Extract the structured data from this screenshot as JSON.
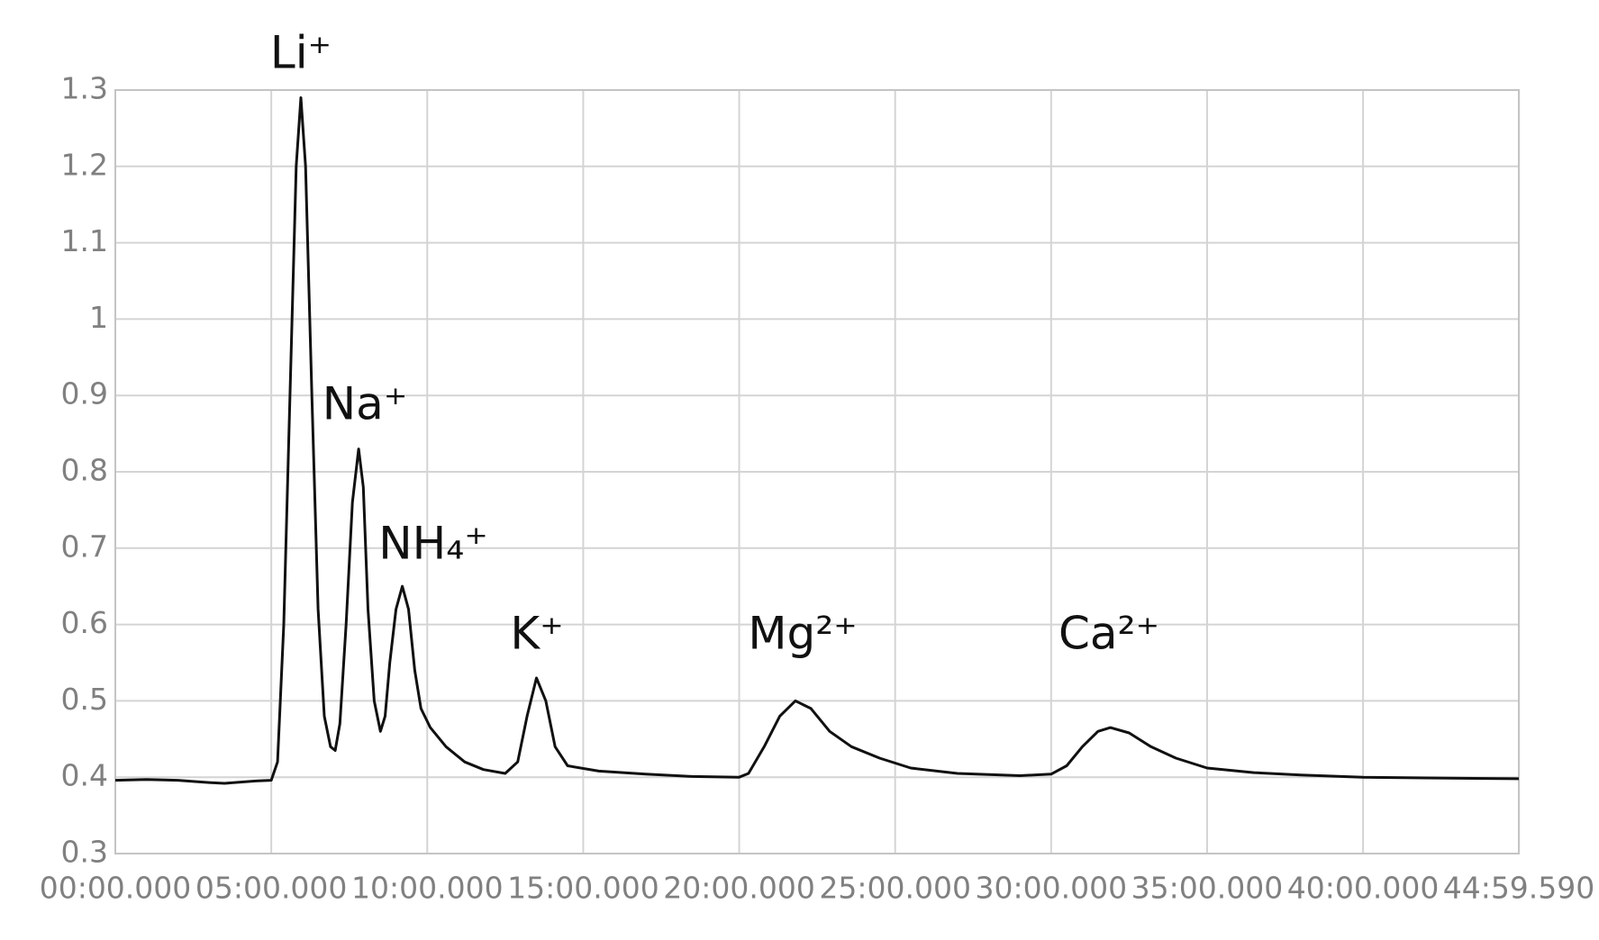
{
  "chart_data": {
    "type": "line",
    "x": [
      0,
      1,
      2,
      3,
      3.5,
      4.5,
      5.0,
      5.2,
      5.4,
      5.6,
      5.8,
      5.95,
      6.1,
      6.3,
      6.5,
      6.7,
      6.9,
      7.05,
      7.2,
      7.4,
      7.6,
      7.8,
      7.95,
      8.1,
      8.3,
      8.5,
      8.65,
      8.8,
      9.0,
      9.2,
      9.4,
      9.6,
      9.8,
      10.1,
      10.6,
      11.2,
      11.8,
      12.5,
      12.9,
      13.2,
      13.5,
      13.8,
      14.1,
      14.5,
      15.5,
      17,
      18.5,
      20,
      20.3,
      20.8,
      21.3,
      21.8,
      22.3,
      22.9,
      23.6,
      24.5,
      25.5,
      27,
      29,
      30,
      30.5,
      31.0,
      31.5,
      31.9,
      32.5,
      33.2,
      34,
      35,
      36.5,
      38,
      40,
      42,
      44.99317
    ],
    "series": [
      {
        "color": "#111111",
        "values": [
          0.396,
          0.397,
          0.396,
          0.393,
          0.392,
          0.395,
          0.396,
          0.42,
          0.6,
          0.9,
          1.2,
          1.29,
          1.2,
          0.9,
          0.62,
          0.48,
          0.44,
          0.435,
          0.47,
          0.6,
          0.76,
          0.83,
          0.78,
          0.62,
          0.5,
          0.46,
          0.48,
          0.55,
          0.62,
          0.65,
          0.62,
          0.54,
          0.49,
          0.465,
          0.44,
          0.42,
          0.41,
          0.405,
          0.42,
          0.48,
          0.53,
          0.5,
          0.44,
          0.415,
          0.408,
          0.404,
          0.401,
          0.4,
          0.405,
          0.44,
          0.48,
          0.5,
          0.49,
          0.46,
          0.44,
          0.425,
          0.412,
          0.405,
          0.402,
          0.404,
          0.415,
          0.44,
          0.46,
          0.465,
          0.458,
          0.44,
          0.425,
          0.412,
          0.406,
          0.403,
          0.4,
          0.399,
          0.398
        ]
      }
    ],
    "xlim": [
      0,
      44.99317
    ],
    "xticks": [
      {
        "value": 0,
        "label": "00:00.000"
      },
      {
        "value": 5,
        "label": "05:00.000"
      },
      {
        "value": 10,
        "label": "10:00.000"
      },
      {
        "value": 15,
        "label": "15:00.000"
      },
      {
        "value": 20,
        "label": "20:00.000"
      },
      {
        "value": 25,
        "label": "25:00.000"
      },
      {
        "value": 30,
        "label": "30:00.000"
      },
      {
        "value": 35,
        "label": "35:00.000"
      },
      {
        "value": 40,
        "label": "40:00.000"
      },
      {
        "value": 44.99317,
        "label": "44:59.590"
      }
    ],
    "ylim": [
      0.3,
      1.3
    ],
    "yticks": [
      0.3,
      0.4,
      0.5,
      0.6,
      0.7,
      0.8,
      0.9,
      1,
      1.1,
      1.2,
      1.3
    ],
    "grid": true,
    "annotations": [
      "Li⁺",
      "Na⁺",
      "NH₄⁺",
      "K⁺",
      "Mg²⁺",
      "Ca²⁺"
    ]
  }
}
